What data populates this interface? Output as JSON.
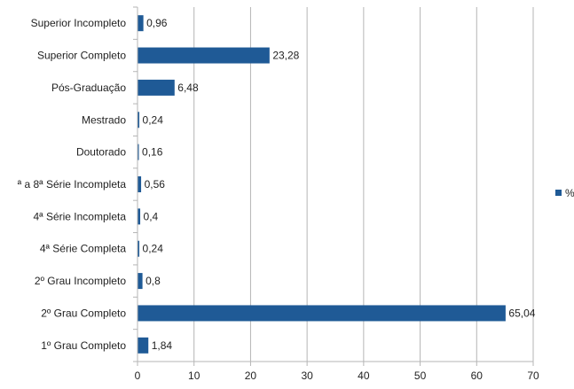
{
  "chart_data": {
    "type": "bar",
    "orientation": "horizontal",
    "categories": [
      "Superior Incompleto",
      "Superior Completo",
      "Pós-Graduação",
      "Mestrado",
      "Doutorado",
      "ª a 8ª Série Incompleta",
      "4ª Série Incompleta",
      "4ª Série Completa",
      "2º Grau Incompleto",
      "2º Grau Completo",
      "1º Grau Completo"
    ],
    "series": [
      {
        "name": "%",
        "color": "#1f5a96",
        "values": [
          0.96,
          23.28,
          6.48,
          0.24,
          0.16,
          0.56,
          0.4,
          0.24,
          0.8,
          65.04,
          1.84
        ],
        "value_labels": [
          "0,96",
          "23,28",
          "6,48",
          "0,24",
          "0,16",
          "0,56",
          "0,4",
          "0,24",
          "0,8",
          "65,04",
          "1,84"
        ]
      }
    ],
    "xlim": [
      0,
      70
    ],
    "x_ticks": [
      0,
      10,
      20,
      30,
      40,
      50,
      60,
      70
    ],
    "grid": "vertical",
    "legend": "right",
    "title": "",
    "xlabel": "",
    "ylabel": ""
  }
}
